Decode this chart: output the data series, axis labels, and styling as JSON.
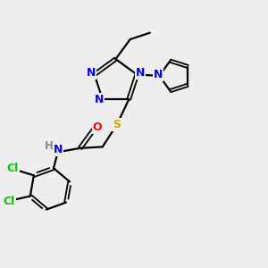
{
  "bg_color": "#eeeeee",
  "atom_colors": {
    "N": "#0000ff",
    "S": "#ccaa00",
    "O": "#ff0000",
    "Cl": "#00cc00",
    "C": "#000000",
    "H": "#888888"
  },
  "bond_color": "#000000"
}
